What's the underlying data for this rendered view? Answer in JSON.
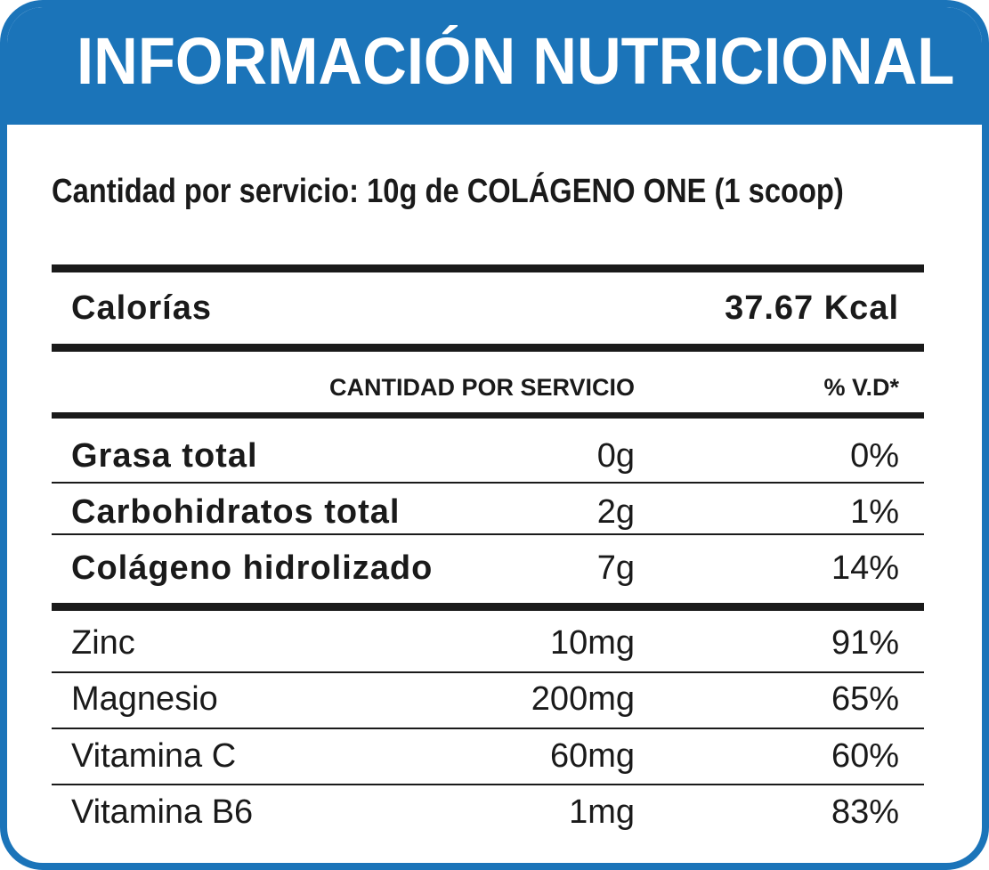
{
  "header": {
    "title": "INFORMACIÓN NUTRICIONAL"
  },
  "serving": {
    "text": "Cantidad por servicio: 10g de COLÁGENO ONE (1 scoop)"
  },
  "calories": {
    "label": "Calorías",
    "value": "37.67 Kcal"
  },
  "columns": {
    "amount": "CANTIDAD POR SERVICIO",
    "dv": "% V.D*"
  },
  "macros": [
    {
      "name": "Grasa total",
      "amount": "0g",
      "dv": "0%"
    },
    {
      "name": "Carbohidratos total",
      "amount": "2g",
      "dv": "1%"
    },
    {
      "name": "Colágeno hidrolizado",
      "amount": "7g",
      "dv": "14%"
    }
  ],
  "micros": [
    {
      "name": "Zinc",
      "amount": "10mg",
      "dv": "91%"
    },
    {
      "name": "Magnesio",
      "amount": "200mg",
      "dv": "65%"
    },
    {
      "name": "Vitamina C",
      "amount": "60mg",
      "dv": "60%"
    },
    {
      "name": "Vitamina B6",
      "amount": "1mg",
      "dv": "83%"
    }
  ],
  "colors": {
    "accent": "#1b74b9",
    "text": "#1a1a1a",
    "background": "#ffffff"
  }
}
